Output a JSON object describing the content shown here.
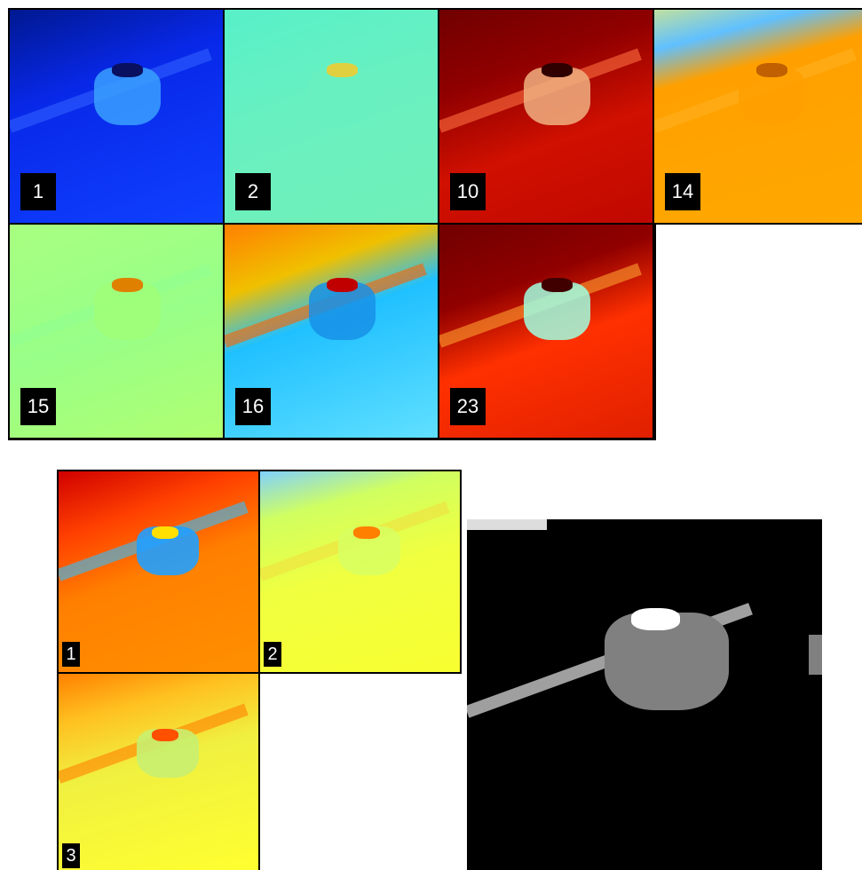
{
  "top_panels": [
    {
      "label": "1"
    },
    {
      "label": "2"
    },
    {
      "label": "10"
    },
    {
      "label": "14"
    },
    {
      "label": "15"
    },
    {
      "label": "16"
    },
    {
      "label": "23"
    }
  ],
  "bottom_panels": [
    {
      "label": "1"
    },
    {
      "label": "2"
    },
    {
      "label": "3"
    }
  ]
}
